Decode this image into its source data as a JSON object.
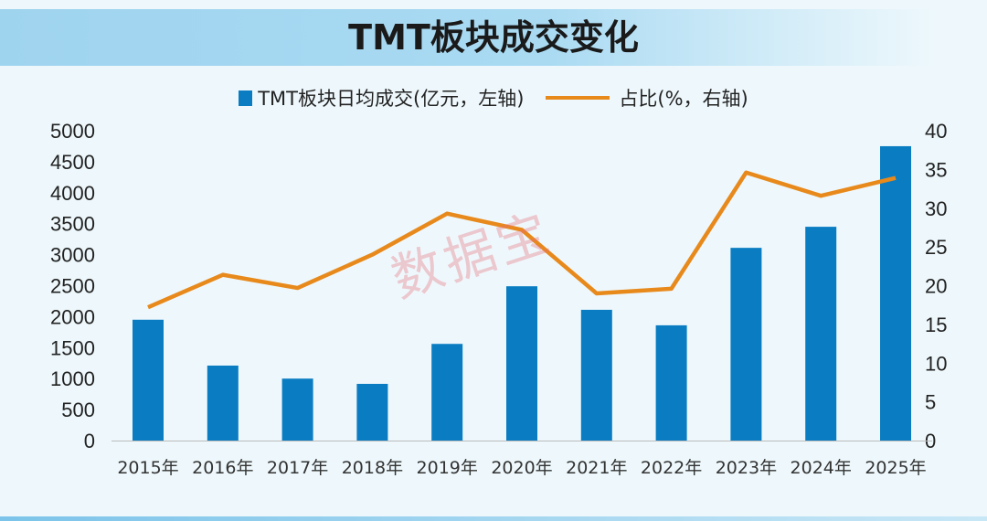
{
  "chart_data": {
    "type": "bar",
    "title": "TMT板块成交变化",
    "categories": [
      "2015年",
      "2016年",
      "2017年",
      "2018年",
      "2019年",
      "2020年",
      "2021年",
      "2022年",
      "2023年",
      "2024年",
      "2025年"
    ],
    "series": [
      {
        "name": "TMT板块日均成交(亿元，左轴)",
        "type": "bar",
        "axis": "left",
        "color": "#0a7dc2",
        "values": [
          1950,
          1210,
          1000,
          915,
          1560,
          2490,
          2110,
          1860,
          3110,
          3450,
          4750
        ]
      },
      {
        "name": "占比(%，右轴)",
        "type": "line",
        "axis": "right",
        "color": "#e8891c",
        "values": [
          17.2,
          21.4,
          19.7,
          24.0,
          29.3,
          27.2,
          19.0,
          19.6,
          34.6,
          31.6,
          33.9
        ]
      }
    ],
    "y_left": {
      "range": [
        0,
        5000
      ],
      "ticks": [
        "0",
        "500",
        "1000",
        "1500",
        "2000",
        "2500",
        "3000",
        "3500",
        "4000",
        "4500",
        "5000"
      ]
    },
    "y_right": {
      "range": [
        0,
        40
      ],
      "ticks": [
        "0",
        "5",
        "10",
        "15",
        "20",
        "25",
        "30",
        "35",
        "40"
      ]
    },
    "grid": false,
    "legend_placement": "top"
  },
  "watermark": "数据宝"
}
